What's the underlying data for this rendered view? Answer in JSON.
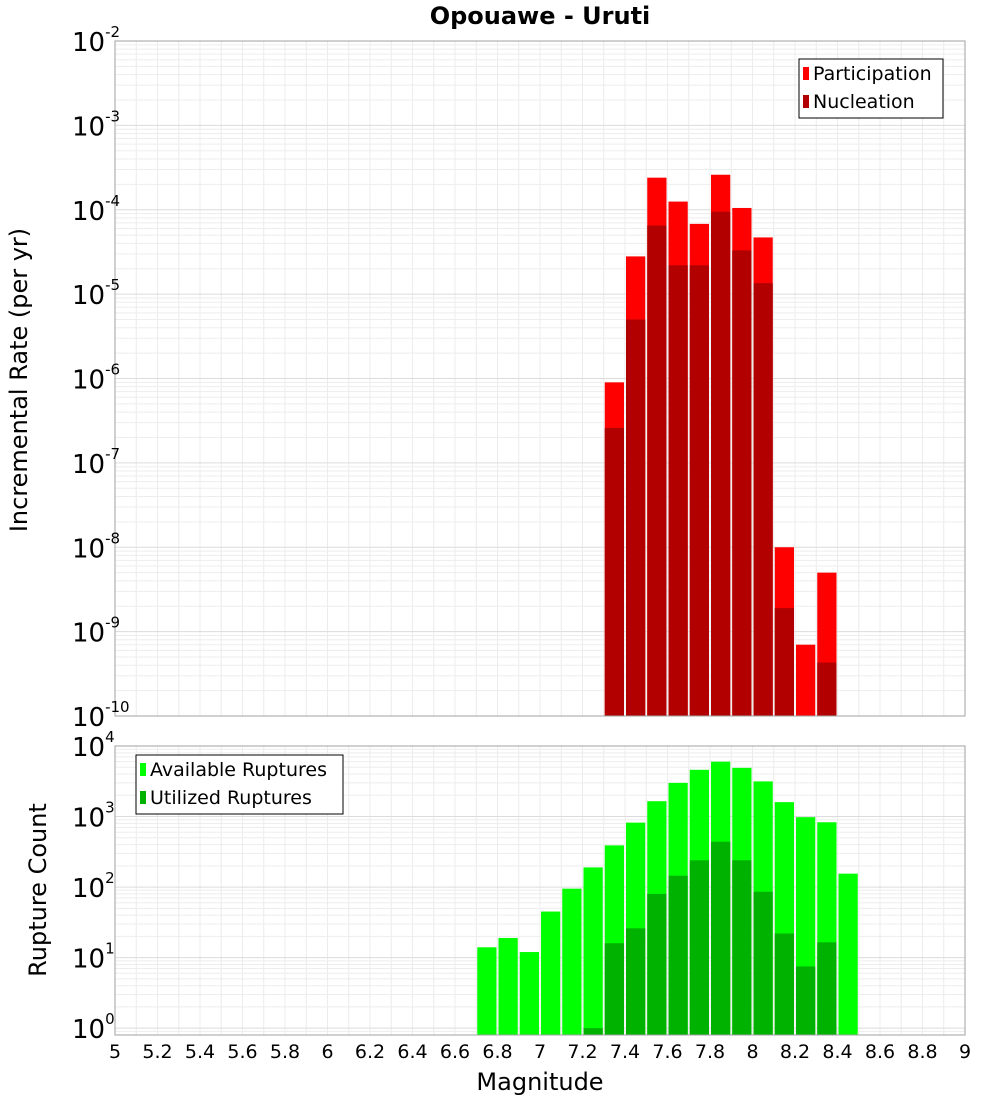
{
  "chart_data": [
    {
      "type": "bar",
      "title": "Opouawe - Uruti",
      "xlabel": "Magnitude",
      "ylabel": "Incremental Rate (per yr)",
      "xlim": [
        5,
        9
      ],
      "ylim": [
        1e-10,
        0.01
      ],
      "yscale": "log",
      "bar_width": 0.1,
      "legend_position": "top-right",
      "grid": true,
      "x": [
        7.35,
        7.45,
        7.55,
        7.65,
        7.75,
        7.85,
        7.95,
        8.05,
        8.15,
        8.25,
        8.35
      ],
      "series": [
        {
          "name": "Participation",
          "color": "#ff0000",
          "values": [
            9e-07,
            2.8e-05,
            0.00024,
            0.000125,
            6.8e-05,
            0.00026,
            0.000105,
            4.7e-05,
            1e-08,
            7e-10,
            5e-09
          ]
        },
        {
          "name": "Nucleation",
          "color": "#b20000",
          "values": [
            2.6e-07,
            5e-06,
            6.5e-05,
            2.2e-05,
            2.2e-05,
            9.5e-05,
            3.3e-05,
            1.35e-05,
            1.9e-09,
            null,
            4.3e-10
          ]
        }
      ]
    },
    {
      "type": "bar",
      "xlabel": "Magnitude",
      "ylabel": "Rupture Count",
      "xlim": [
        5,
        9
      ],
      "ylim": [
        0.8,
        10000
      ],
      "yscale": "log",
      "bar_width": 0.1,
      "legend_position": "top-left",
      "grid": true,
      "x": [
        6.75,
        6.85,
        6.95,
        7.05,
        7.15,
        7.25,
        7.35,
        7.45,
        7.55,
        7.65,
        7.75,
        7.85,
        7.95,
        8.05,
        8.15,
        8.25,
        8.35,
        8.45
      ],
      "series": [
        {
          "name": "Available Ruptures",
          "color": "#00ff00",
          "values": [
            14,
            19,
            12,
            45,
            95,
            190,
            390,
            820,
            1650,
            3000,
            4600,
            6000,
            4900,
            3150,
            1600,
            980,
            830,
            155
          ]
        },
        {
          "name": "Utilized Ruptures",
          "color": "#00b200",
          "values": [
            null,
            null,
            null,
            null,
            null,
            1,
            16,
            26,
            80,
            145,
            240,
            440,
            240,
            86,
            22,
            7.5,
            16.5,
            null
          ]
        }
      ]
    }
  ],
  "x_ticks": [
    "5",
    "5.2",
    "5.4",
    "5.6",
    "5.8",
    "6",
    "6.2",
    "6.4",
    "6.6",
    "6.8",
    "7",
    "7.2",
    "7.4",
    "7.6",
    "7.8",
    "8",
    "8.2",
    "8.4",
    "8.6",
    "8.8",
    "9"
  ],
  "y_ticks_top": [
    {
      "base": "10",
      "exp": "-2",
      "value": -2
    },
    {
      "base": "10",
      "exp": "-3",
      "value": -3
    },
    {
      "base": "10",
      "exp": "-4",
      "value": -4
    },
    {
      "base": "10",
      "exp": "-5",
      "value": -5
    },
    {
      "base": "10",
      "exp": "-6",
      "value": -6
    },
    {
      "base": "10",
      "exp": "-7",
      "value": -7
    },
    {
      "base": "10",
      "exp": "-8",
      "value": -8
    },
    {
      "base": "10",
      "exp": "-9",
      "value": -9
    },
    {
      "base": "10",
      "exp": "-10",
      "value": -10
    }
  ],
  "y_ticks_bottom": [
    {
      "base": "10",
      "exp": "4",
      "value": 4
    },
    {
      "base": "10",
      "exp": "3",
      "value": 3
    },
    {
      "base": "10",
      "exp": "2",
      "value": 2
    },
    {
      "base": "10",
      "exp": "1",
      "value": 1
    },
    {
      "base": "10",
      "exp": "0",
      "value": 0
    }
  ]
}
